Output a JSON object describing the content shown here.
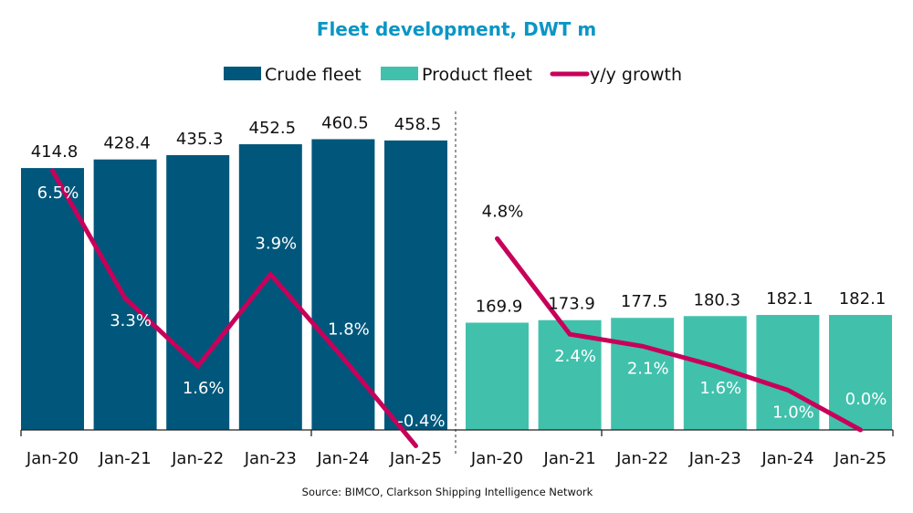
{
  "chart_data": {
    "type": "bar",
    "title": "Fleet development, DWT m",
    "source": "Source: BIMCO, Clarkson Shipping Intelligence Network",
    "categories": [
      "Jan-20",
      "Jan-21",
      "Jan-22",
      "Jan-23",
      "Jan-24",
      "Jan-25"
    ],
    "ylim": [
      0,
      600
    ],
    "y2lim": [
      0,
      9.5
    ],
    "grid": false,
    "legend_placement": "top",
    "colors": {
      "crude": "#00577B",
      "product": "#41C1AC",
      "growth": "#C8005A",
      "title": "#0A96C5"
    },
    "legend": [
      "Crude fleet",
      "Product fleet",
      "y/y growth"
    ],
    "groups": [
      {
        "series": "Crude fleet",
        "values": [
          414.8,
          428.4,
          435.3,
          452.5,
          460.5,
          458.5
        ],
        "value_labels": [
          "414.8",
          "428.4",
          "435.3",
          "452.5",
          "460.5",
          "458.5"
        ],
        "growth": [
          6.5,
          3.3,
          1.6,
          3.9,
          1.8,
          -0.4
        ],
        "growth_labels": [
          "6.5%",
          "3.3%",
          "1.6%",
          "3.9%",
          "1.8%",
          "-0.4%"
        ]
      },
      {
        "series": "Product fleet",
        "values": [
          169.9,
          173.9,
          177.5,
          180.3,
          182.1,
          182.1
        ],
        "value_labels": [
          "169.9",
          "173.9",
          "177.5",
          "180.3",
          "182.1",
          "182.1"
        ],
        "growth": [
          4.8,
          2.4,
          2.1,
          1.6,
          1.0,
          0.0
        ],
        "growth_labels": [
          "4.8%",
          "2.4%",
          "2.1%",
          "1.6%",
          "1.0%",
          "0.0%"
        ]
      }
    ]
  }
}
